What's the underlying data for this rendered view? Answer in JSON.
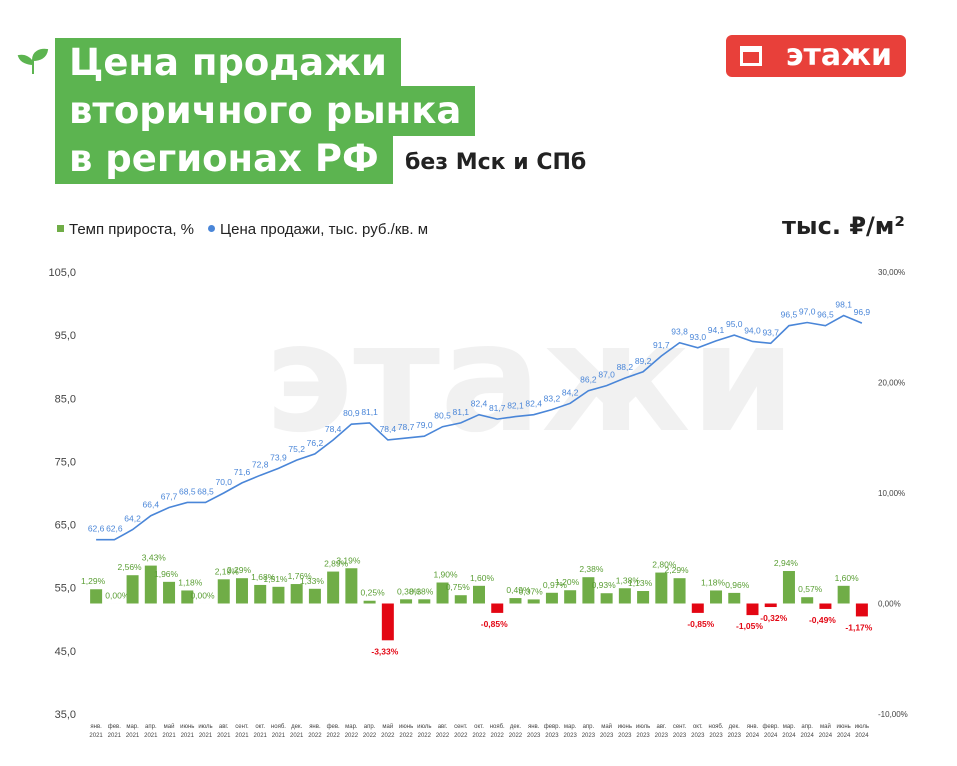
{
  "header": {
    "title_lines": [
      "Цена продажи",
      "вторичного рынка",
      "в регионах РФ"
    ],
    "subtitle": "без Мск и СПб",
    "logo": "этажи",
    "unit": "тыс. ₽/м²"
  },
  "chart_data": {
    "type": "combo",
    "categories": [
      "янв. 2021",
      "фев. 2021",
      "мар. 2021",
      "апр. 2021",
      "май 2021",
      "июнь 2021",
      "июль 2021",
      "авг. 2021",
      "сент. 2021",
      "окт. 2021",
      "нояб. 2021",
      "дек. 2021",
      "янв. 2022",
      "фев. 2022",
      "мар. 2022",
      "апр. 2022",
      "май 2022",
      "июнь 2022",
      "июль 2022",
      "авг. 2022",
      "сент. 2022",
      "окт. 2022",
      "нояб. 2022",
      "дек. 2022",
      "янв. 2023",
      "февр. 2023",
      "мар. 2023",
      "апр. 2023",
      "май 2023",
      "июнь 2023",
      "июль 2023",
      "авг. 2023",
      "сент. 2023",
      "окт. 2023",
      "нояб. 2023",
      "дек. 2023",
      "янв. 2024",
      "февр. 2024",
      "мар. 2024",
      "апр. 2024",
      "май 2024",
      "июнь 2024",
      "июль 2024"
    ],
    "series": [
      {
        "name": "Темп прироста, %",
        "type": "bar",
        "axis": "y2",
        "color": "#70ad47",
        "negative_color": "#e30613",
        "values": [
          1.29,
          0.0,
          2.56,
          3.43,
          1.96,
          1.18,
          0.0,
          2.19,
          2.29,
          1.68,
          1.51,
          1.76,
          1.33,
          2.89,
          3.19,
          0.25,
          -3.33,
          0.38,
          0.38,
          1.9,
          0.75,
          1.6,
          -0.85,
          0.49,
          0.37,
          0.97,
          1.2,
          2.38,
          0.93,
          1.38,
          1.13,
          2.8,
          2.29,
          -0.85,
          1.18,
          0.96,
          -1.05,
          -0.32,
          2.94,
          0.57,
          -0.49,
          1.6,
          -1.17
        ],
        "value_labels": [
          "1,29%",
          "0,00%",
          "2,56%",
          "3,43%",
          "1,96%",
          "1,18%",
          "0,00%",
          "2,19%",
          "2,29%",
          "1,68%",
          "1,51%",
          "1,76%",
          "1,33%",
          "2,89%",
          "3,19%",
          "0,25%",
          "-3,33%",
          "0,38%",
          "0,38%",
          "1,90%",
          "0,75%",
          "1,60%",
          "-0,85%",
          "0,49%",
          "0,37%",
          "0,97%",
          "1,20%",
          "2,38%",
          "0,93%",
          "1,38%",
          "1,13%",
          "2,80%",
          "2,29%",
          "-0,85%",
          "1,18%",
          "0,96%",
          "-1,05%",
          "-0,32%",
          "2,94%",
          "0,57%",
          "-0,49%",
          "1,60%",
          "-1,17%"
        ]
      },
      {
        "name": "Цена продажи, тыс. руб./кв. м",
        "type": "line",
        "axis": "y",
        "color": "#4a86d8",
        "values": [
          62.6,
          62.6,
          64.2,
          66.4,
          67.7,
          68.5,
          68.5,
          70.0,
          71.6,
          72.8,
          73.9,
          75.2,
          76.2,
          78.4,
          80.9,
          81.1,
          78.4,
          78.7,
          79.0,
          80.5,
          81.1,
          82.4,
          81.7,
          82.1,
          82.4,
          83.2,
          84.2,
          86.2,
          87.0,
          88.2,
          89.2,
          91.7,
          93.8,
          93.0,
          94.1,
          95.0,
          94.0,
          93.7,
          96.5,
          97.0,
          96.5,
          98.1,
          96.9
        ],
        "value_labels": [
          "62,6",
          "62,6",
          "64,2",
          "66,4",
          "67,7",
          "68,5",
          "68,5",
          "70,0",
          "71,6",
          "72,8",
          "73,9",
          "75,2",
          "76,2",
          "78,4",
          "80,9",
          "81,1",
          "78,4",
          "78,7",
          "79,0",
          "80,5",
          "81,1",
          "82,4",
          "81,7",
          "82,1",
          "82,4",
          "83,2",
          "84,2",
          "86,2",
          "87,0",
          "88,2",
          "89,2",
          "91,7",
          "93,8",
          "93,0",
          "94,1",
          "95,0",
          "94,0",
          "93,7",
          "96,5",
          "97,0",
          "96,5",
          "98,1",
          "96,9"
        ]
      }
    ],
    "ylim": [
      35,
      105
    ],
    "yticks": [
      {
        "value": 35,
        "label": "35,0"
      },
      {
        "value": 45,
        "label": "45,0"
      },
      {
        "value": 55,
        "label": "55,0"
      },
      {
        "value": 65,
        "label": "65,0"
      },
      {
        "value": 75,
        "label": "75,0"
      },
      {
        "value": 85,
        "label": "85,0"
      },
      {
        "value": 95,
        "label": "95,0"
      },
      {
        "value": 105,
        "label": "105,0"
      }
    ],
    "y2lim": [
      -10,
      30
    ],
    "y2ticks": [
      {
        "value": -10,
        "label": "-10,00%"
      },
      {
        "value": 0,
        "label": "0,00%"
      },
      {
        "value": 10,
        "label": "10,00%"
      },
      {
        "value": 20,
        "label": "20,00%"
      },
      {
        "value": 30,
        "label": "30,00%"
      }
    ],
    "grid": false
  }
}
